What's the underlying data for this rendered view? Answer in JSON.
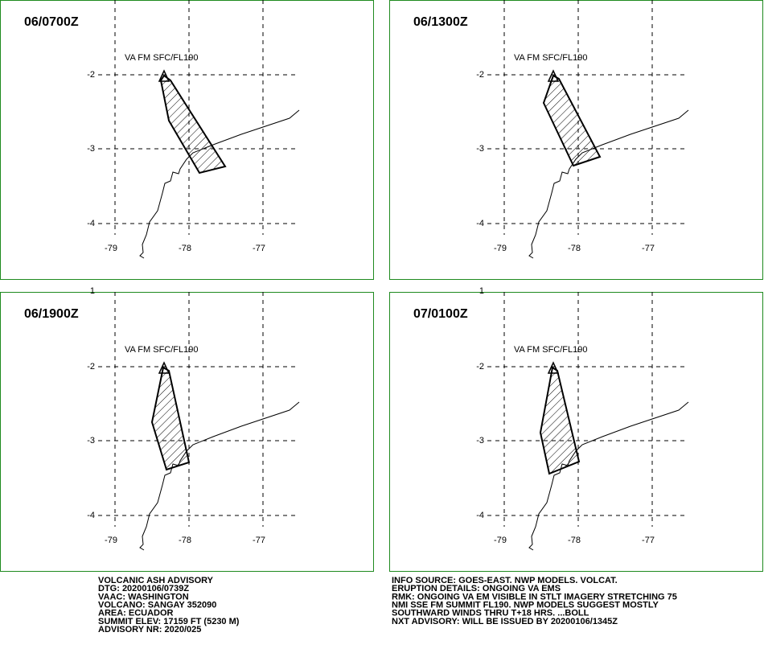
{
  "panels": [
    {
      "title": "06/0700Z",
      "label": "VA FM SFC/FL190",
      "lat_labels": [
        "-2",
        "-3",
        "-4"
      ],
      "lon_labels": [
        "-79",
        "-78",
        "-77"
      ]
    },
    {
      "title": "06/1300Z",
      "label": "VA FM SFC/FL190",
      "lat_labels": [
        "-2",
        "-3",
        "-4"
      ],
      "lon_labels": [
        "-79",
        "-78",
        "-77"
      ]
    },
    {
      "title": "06/1900Z",
      "label": "VA FM SFC/FL190",
      "top_label": "1",
      "lat_labels": [
        "-2",
        "-3",
        "-4"
      ],
      "lon_labels": [
        "-79",
        "-78",
        "-77"
      ]
    },
    {
      "title": "07/0100Z",
      "label": "VA FM SFC/FL190",
      "top_label": "1",
      "lat_labels": [
        "-2",
        "-3",
        "-4"
      ],
      "lon_labels": [
        "-79",
        "-78",
        "-77"
      ]
    }
  ],
  "advisory_left": [
    "VOLCANIC ASH ADVISORY",
    "DTG: 20200106/0739Z",
    "VAAC: WASHINGTON",
    "VOLCANO: SANGAY 352090",
    "AREA: ECUADOR",
    "SUMMIT ELEV: 17159 FT (5230 M)",
    "ADVISORY NR: 2020/025"
  ],
  "advisory_right": [
    "INFO SOURCE: GOES-EAST. NWP MODELS. VOLCAT.",
    "ERUPTION DETAILS: ONGOING VA EMS",
    "RMK: ONGOING VA EM VISIBLE IN STLT IMAGERY STRETCHING 75",
    "NMI SSE FM SUMMIT FL190. NWP MODELS SUGGEST MOSTLY",
    "SOUTHWARD WINDS THRU T+18 HRS. ...BOLL",
    "NXT ADVISORY: WILL BE ISSUED BY 20200106/1345Z"
  ]
}
